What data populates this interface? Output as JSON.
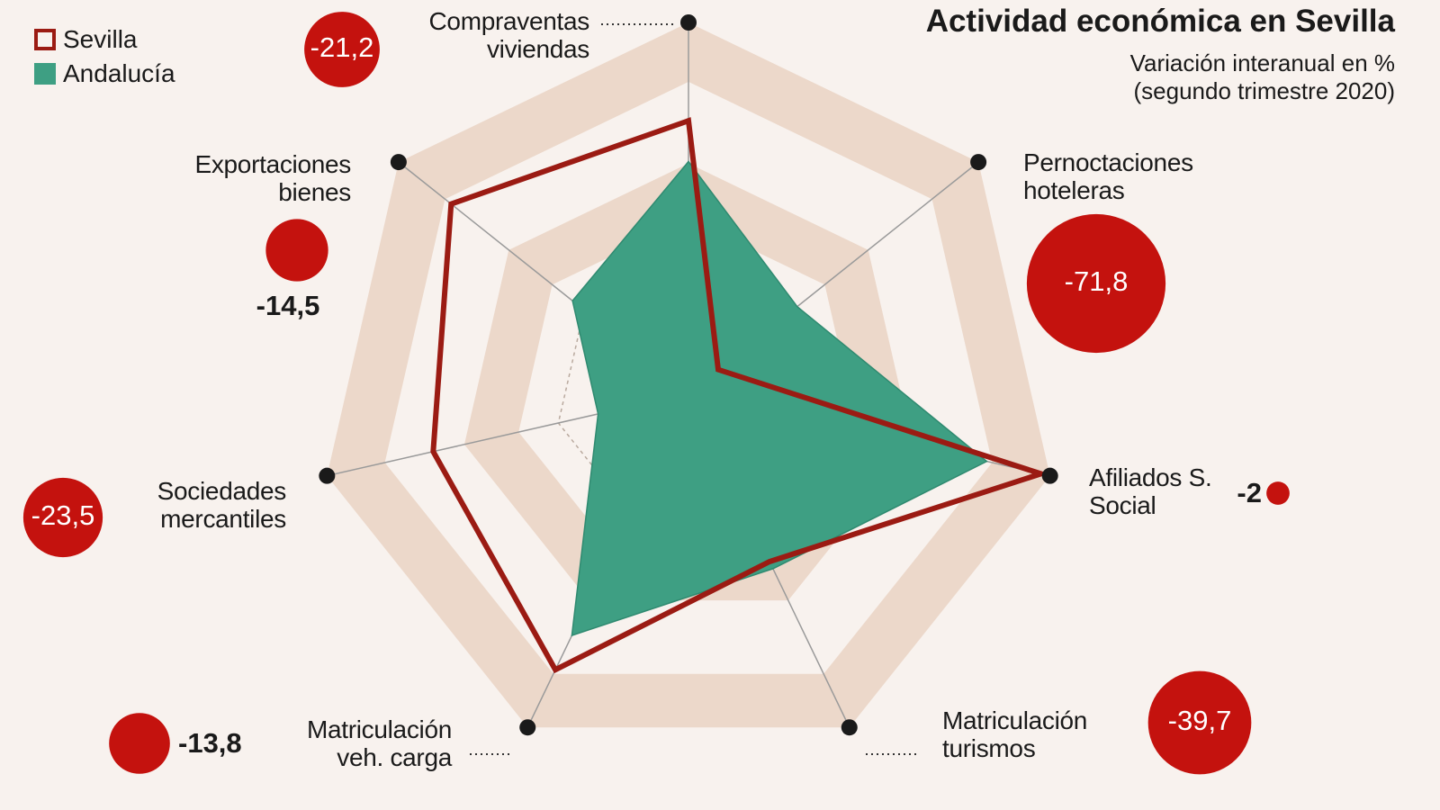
{
  "chart_data": {
    "type": "radar",
    "title": "Actividad económica en Sevilla",
    "subtitle": "Variación interanual en % (segundo trimestre 2020)",
    "categories": [
      "Compraventas viviendas",
      "Pernoctaciones hoteleras",
      "Afiliados S. Social",
      "Matriculación turismos",
      "Matriculación veh. carga",
      "Sociedades mercantiles",
      "Exportaciones bienes"
    ],
    "series": [
      {
        "name": "Sevilla",
        "color": "#9b1b13",
        "bubble_color": "#c4120e",
        "values": [
          -21.2,
          -71.8,
          -2,
          -39.7,
          -13.8,
          -23.5,
          -14.5
        ],
        "value_labels": [
          "-21,2",
          "-71,8",
          "-2",
          "-39,7",
          "-13,8",
          "-23,5",
          "-14,5"
        ]
      },
      {
        "name": "Andalucía",
        "color": "#3e9f83",
        "values": [
          -30,
          -50,
          -14,
          -38,
          -22,
          -60,
          -48
        ]
      }
    ],
    "ylim": [
      -80,
      0
    ],
    "legend": "upper left"
  }
}
